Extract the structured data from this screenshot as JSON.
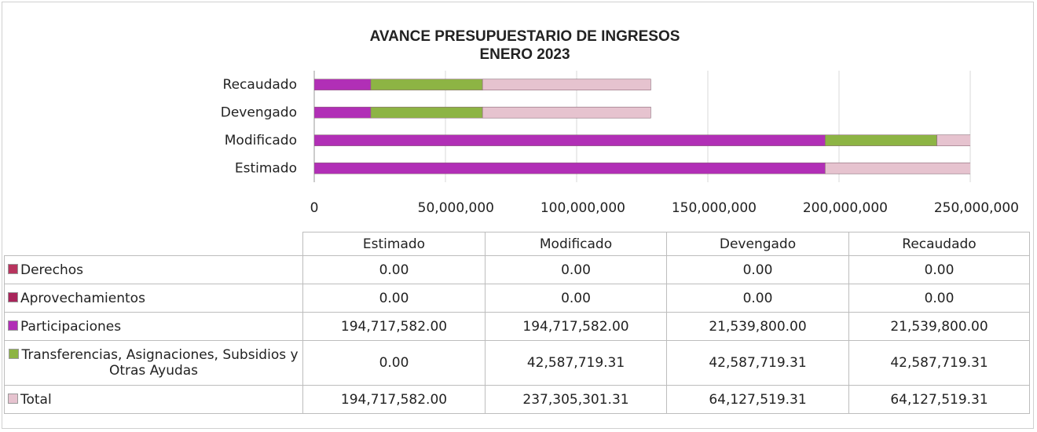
{
  "chart_data": {
    "type": "bar",
    "orientation": "horizontal",
    "stacked": true,
    "title": "AVANCE PRESUPUESTARIO DE INGRESOS",
    "subtitle": "ENERO 2023",
    "categories": [
      "Estimado",
      "Modificado",
      "Devengado",
      "Recaudado"
    ],
    "series": [
      {
        "name": "Derechos",
        "color": "#b8345e",
        "values": [
          0,
          0,
          0,
          0
        ],
        "value_labels": [
          "0.00",
          "0.00",
          "0.00",
          "0.00"
        ]
      },
      {
        "name": "Aprovechamientos",
        "color": "#a8245a",
        "values": [
          0,
          0,
          0,
          0
        ],
        "value_labels": [
          "0.00",
          "0.00",
          "0.00",
          "0.00"
        ]
      },
      {
        "name": "Participaciones",
        "color": "#b12fb6",
        "values": [
          194717582,
          194717582,
          21539800,
          21539800
        ],
        "value_labels": [
          "194,717,582.00",
          "194,717,582.00",
          "21,539,800.00",
          "21,539,800.00"
        ]
      },
      {
        "name": "Transferencias, Asignaciones, Subsidios y Otras Ayudas",
        "color": "#8db444",
        "values": [
          0,
          42587719.31,
          42587719.31,
          42587719.31
        ],
        "value_labels": [
          "0.00",
          "42,587,719.31",
          "42,587,719.31",
          "42,587,719.31"
        ]
      },
      {
        "name": "Total",
        "color": "#e6c3cf",
        "values": [
          194717582,
          237305301.31,
          64127519.31,
          64127519.31
        ],
        "value_labels": [
          "194,717,582.00",
          "237,305,301.31",
          "64,127,519.31",
          "64,127,519.31"
        ]
      }
    ],
    "xlim": [
      0,
      250000000
    ],
    "xticks": [
      0,
      {
        "value": 50000000,
        "label": "50,000,000"
      },
      {
        "value": 100000000,
        "label": "100,000,000"
      },
      {
        "value": 150000000,
        "label": "150,000,000"
      },
      {
        "value": 200000000,
        "label": "200,000,000"
      },
      {
        "value": 250000000,
        "label": "250,000,000"
      }
    ],
    "grid": true
  }
}
